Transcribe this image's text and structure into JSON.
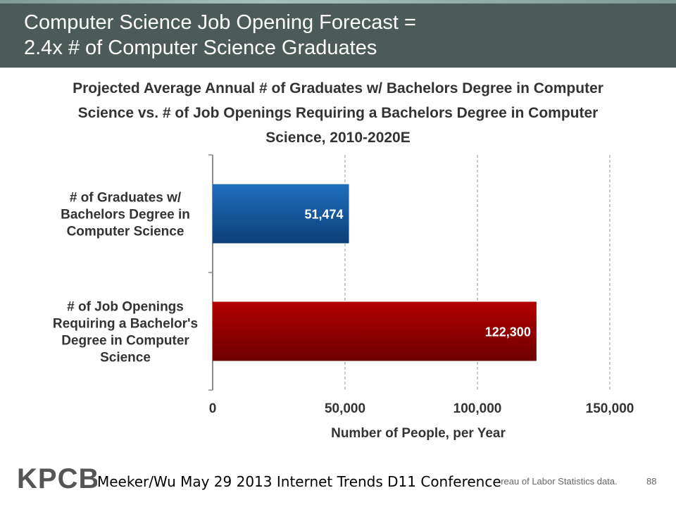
{
  "header": {
    "title_line1": "Computer Science Job Opening Forecast =",
    "title_line2": "2.4x # of Computer Science Graduates"
  },
  "chart_data": {
    "type": "bar",
    "orientation": "horizontal",
    "title": "Projected Average Annual # of Graduates w/ Bachelors Degree in Computer Science vs. # of Job Openings Requiring a Bachelors Degree in Computer Science, 2010-2020E",
    "title_lines": [
      "Projected Average Annual # of Graduates w/ Bachelors Degree in Computer",
      "Science vs. # of Job Openings Requiring a Bachelors Degree in Computer",
      "Science, 2010-2020E"
    ],
    "categories": [
      [
        "# of Graduates w/",
        "Bachelors Degree in",
        "Computer Science"
      ],
      [
        "# of Job Openings",
        "Requiring a Bachelor's",
        "Degree in Computer",
        "Science"
      ]
    ],
    "values": [
      51474,
      122300
    ],
    "value_labels": [
      "51,474",
      "122,300"
    ],
    "colors": [
      "#1f6fc0",
      "#b30000"
    ],
    "xlabel": "Number of People, per Year",
    "xlim": [
      0,
      150000
    ],
    "xticks": [
      0,
      50000,
      100000,
      150000
    ],
    "xtick_labels": [
      "0",
      "50,000",
      "100,000",
      "150,000"
    ],
    "grid": "vertical-dashed"
  },
  "footer": {
    "logo": "KPCB",
    "note": "Meeker/Wu May 29 2013 Internet Trends D11 Conference",
    "source": "ureau of Labor Statistics data.",
    "page": "88"
  }
}
